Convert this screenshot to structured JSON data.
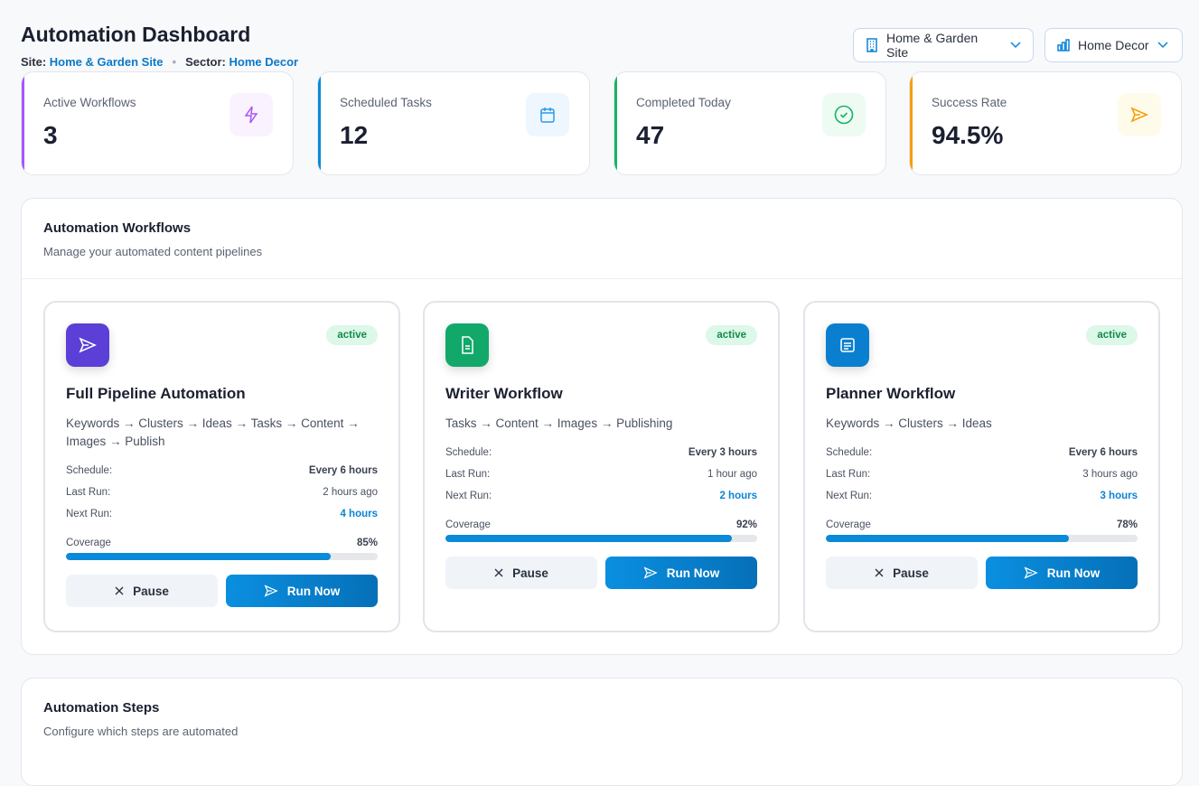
{
  "header": {
    "title": "Automation Dashboard",
    "site_label": "Site:",
    "site_value": "Home & Garden Site",
    "sector_label": "Sector:",
    "sector_value": "Home Decor",
    "dot": "•"
  },
  "selectors": {
    "site": {
      "value": "Home & Garden Site",
      "icon": "building-icon"
    },
    "sector": {
      "value": "Home Decor",
      "icon": "bar-chart-icon"
    }
  },
  "stats": [
    {
      "label": "Active Workflows",
      "value": "3",
      "color": "#a855f7",
      "icon": "bolt-icon"
    },
    {
      "label": "Scheduled Tasks",
      "value": "12",
      "color": "#0a8ad8",
      "icon": "calendar-icon"
    },
    {
      "label": "Completed Today",
      "value": "47",
      "color": "#16b364",
      "icon": "check-circle-icon"
    },
    {
      "label": "Success Rate",
      "value": "94.5%",
      "color": "#f59e0b",
      "icon": "send-icon"
    }
  ],
  "workflows": {
    "title": "Automation Workflows",
    "subtitle": "Manage your automated content pipelines",
    "labels": {
      "schedule": "Schedule:",
      "last_run": "Last Run:",
      "next_run": "Next Run:",
      "coverage": "Coverage",
      "pause": "Pause",
      "run": "Run Now"
    },
    "items": [
      {
        "name": "Full Pipeline Automation",
        "status": "active",
        "steps": "Keywords → Clusters → Ideas → Tasks → Content → Images → Publish",
        "schedule": "Every 6 hours",
        "last_run": "2 hours ago",
        "next_run": "4 hours",
        "coverage": "85%",
        "coverage_value": 85,
        "icon": "send-icon",
        "color": "#5b3fd6"
      },
      {
        "name": "Writer Workflow",
        "status": "active",
        "steps": "Tasks → Content → Images → Publishing",
        "schedule": "Every 3 hours",
        "last_run": "1 hour ago",
        "next_run": "2 hours",
        "coverage": "92%",
        "coverage_value": 92,
        "icon": "file-text-icon",
        "color": "#12a86a"
      },
      {
        "name": "Planner Workflow",
        "status": "active",
        "steps": "Keywords → Clusters → Ideas",
        "schedule": "Every 6 hours",
        "last_run": "3 hours ago",
        "next_run": "3 hours",
        "coverage": "78%",
        "coverage_value": 78,
        "icon": "list-icon",
        "color": "#0a7fd0"
      }
    ]
  },
  "steps": {
    "title": "Automation Steps",
    "subtitle": "Configure which steps are automated"
  }
}
